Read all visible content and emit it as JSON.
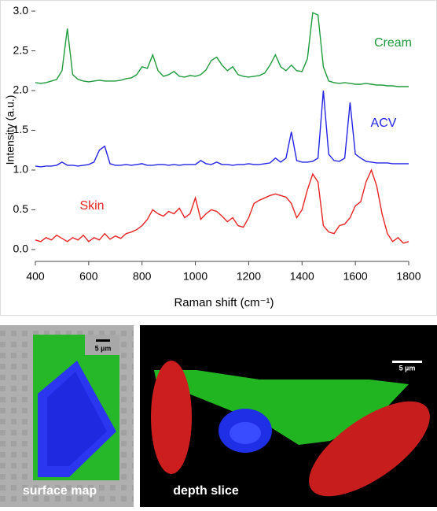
{
  "chart_data": {
    "type": "line",
    "y_label": "Intensity (a.u.)",
    "x_label": "Raman shift (cm⁻¹)",
    "xlim": [
      400,
      1800
    ],
    "xticks": [
      400,
      600,
      800,
      1000,
      1200,
      1400,
      1600,
      1800
    ],
    "ylim": [
      -0.1,
      3.1
    ],
    "yticks": [
      {
        "value": 0,
        "label": "0.0"
      },
      0.5,
      {
        "value": 1,
        "label": "1.0"
      },
      1.5,
      {
        "value": 2,
        "label": "2.0"
      },
      2.5,
      {
        "value": 3,
        "label": "3.0"
      }
    ],
    "x": [
      400,
      420,
      440,
      460,
      480,
      500,
      520,
      540,
      560,
      580,
      600,
      620,
      640,
      660,
      680,
      700,
      720,
      740,
      760,
      780,
      800,
      820,
      840,
      860,
      880,
      900,
      920,
      940,
      960,
      980,
      1000,
      1020,
      1040,
      1060,
      1080,
      1100,
      1120,
      1140,
      1160,
      1180,
      1200,
      1220,
      1240,
      1260,
      1280,
      1300,
      1320,
      1340,
      1360,
      1380,
      1400,
      1420,
      1440,
      1460,
      1480,
      1500,
      1520,
      1540,
      1560,
      1580,
      1600,
      1620,
      1640,
      1660,
      1680,
      1700,
      1720,
      1740,
      1760,
      1780,
      1800
    ],
    "series": [
      {
        "name": "Cream",
        "color": "#1e9b3c",
        "values": [
          2.1,
          2.09,
          2.1,
          2.12,
          2.14,
          2.25,
          2.78,
          2.2,
          2.14,
          2.12,
          2.11,
          2.12,
          2.13,
          2.12,
          2.12,
          2.12,
          2.13,
          2.15,
          2.16,
          2.2,
          2.3,
          2.28,
          2.45,
          2.25,
          2.18,
          2.2,
          2.24,
          2.18,
          2.17,
          2.19,
          2.18,
          2.2,
          2.26,
          2.38,
          2.42,
          2.32,
          2.25,
          2.3,
          2.2,
          2.18,
          2.17,
          2.18,
          2.19,
          2.22,
          2.32,
          2.45,
          2.3,
          2.25,
          2.32,
          2.25,
          2.24,
          2.4,
          2.98,
          2.95,
          2.3,
          2.12,
          2.1,
          2.09,
          2.1,
          2.09,
          2.08,
          2.08,
          2.09,
          2.08,
          2.07,
          2.07,
          2.06,
          2.06,
          2.05,
          2.05,
          2.05
        ]
      },
      {
        "name": "ACV",
        "color": "#2323e6",
        "values": [
          1.05,
          1.04,
          1.05,
          1.05,
          1.06,
          1.1,
          1.06,
          1.06,
          1.05,
          1.06,
          1.07,
          1.1,
          1.25,
          1.3,
          1.08,
          1.06,
          1.06,
          1.07,
          1.06,
          1.07,
          1.08,
          1.06,
          1.06,
          1.07,
          1.07,
          1.06,
          1.07,
          1.06,
          1.07,
          1.07,
          1.07,
          1.12,
          1.08,
          1.07,
          1.1,
          1.07,
          1.07,
          1.06,
          1.07,
          1.07,
          1.08,
          1.07,
          1.07,
          1.08,
          1.09,
          1.15,
          1.1,
          1.15,
          1.48,
          1.12,
          1.1,
          1.1,
          1.11,
          1.15,
          2.0,
          1.2,
          1.12,
          1.11,
          1.15,
          1.85,
          1.2,
          1.15,
          1.11,
          1.1,
          1.09,
          1.09,
          1.09,
          1.08,
          1.08,
          1.08,
          1.08
        ]
      },
      {
        "name": "Skin",
        "color": "#e82323",
        "values": [
          0.12,
          0.1,
          0.15,
          0.12,
          0.18,
          0.14,
          0.1,
          0.15,
          0.12,
          0.18,
          0.1,
          0.15,
          0.12,
          0.2,
          0.13,
          0.17,
          0.14,
          0.2,
          0.22,
          0.25,
          0.3,
          0.38,
          0.5,
          0.45,
          0.42,
          0.48,
          0.45,
          0.52,
          0.4,
          0.45,
          0.65,
          0.38,
          0.45,
          0.5,
          0.48,
          0.42,
          0.35,
          0.4,
          0.3,
          0.28,
          0.4,
          0.58,
          0.62,
          0.65,
          0.68,
          0.7,
          0.68,
          0.66,
          0.58,
          0.4,
          0.5,
          0.75,
          0.95,
          0.85,
          0.3,
          0.22,
          0.2,
          0.3,
          0.32,
          0.4,
          0.55,
          0.6,
          0.85,
          1.0,
          0.8,
          0.45,
          0.2,
          0.1,
          0.15,
          0.08,
          0.1
        ]
      }
    ]
  },
  "images": [
    {
      "label": "surface map",
      "scale_bar": "5 µm"
    },
    {
      "label": "depth slice",
      "scale_bar": "5 µm"
    }
  ]
}
